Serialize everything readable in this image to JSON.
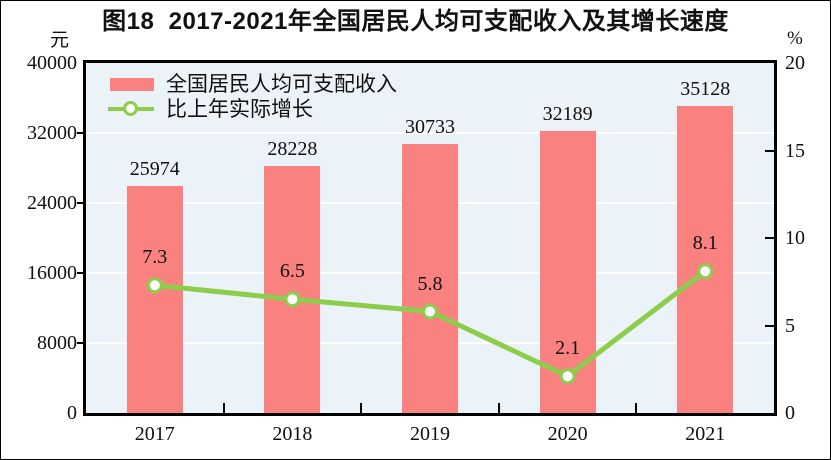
{
  "chart_data": {
    "type": "bar+line",
    "title": "图18  2017-2021年全国居民人均可支配收入及其增长速度",
    "categories": [
      "2017",
      "2018",
      "2019",
      "2020",
      "2021"
    ],
    "series": [
      {
        "name": "全国居民人均可支配收入",
        "type": "bar",
        "axis": "left",
        "unit": "元",
        "values": [
          25974,
          28228,
          30733,
          32189,
          35128
        ],
        "color": "#f98280"
      },
      {
        "name": "比上年实际增长",
        "type": "line",
        "axis": "right",
        "unit": "%",
        "values": [
          7.3,
          6.5,
          5.8,
          2.1,
          8.1
        ],
        "color": "#8ccd4b",
        "marker": "circle-white-fill"
      }
    ],
    "left_axis": {
      "unit": "元",
      "min": 0,
      "max": 40000,
      "tick_step": 8000,
      "ticks": [
        0,
        8000,
        16000,
        24000,
        32000,
        40000
      ]
    },
    "right_axis": {
      "unit": "%",
      "min": 0,
      "max": 20,
      "tick_step": 5,
      "ticks": [
        0,
        5,
        10,
        15,
        20
      ]
    },
    "grid": "horizontal-lines-at-left-axis-ticks",
    "legend_position": "top-left-inside",
    "value_label_decimals_line": 1
  },
  "colors": {
    "bar": "#f98280",
    "line": "#8ccd4b",
    "marker_fill": "#ffffff",
    "plot_background": "#ecf3f8",
    "gridline": "#ffffff",
    "frame": "#000000",
    "text": "#111111",
    "canvas_background": "#ffffff"
  }
}
